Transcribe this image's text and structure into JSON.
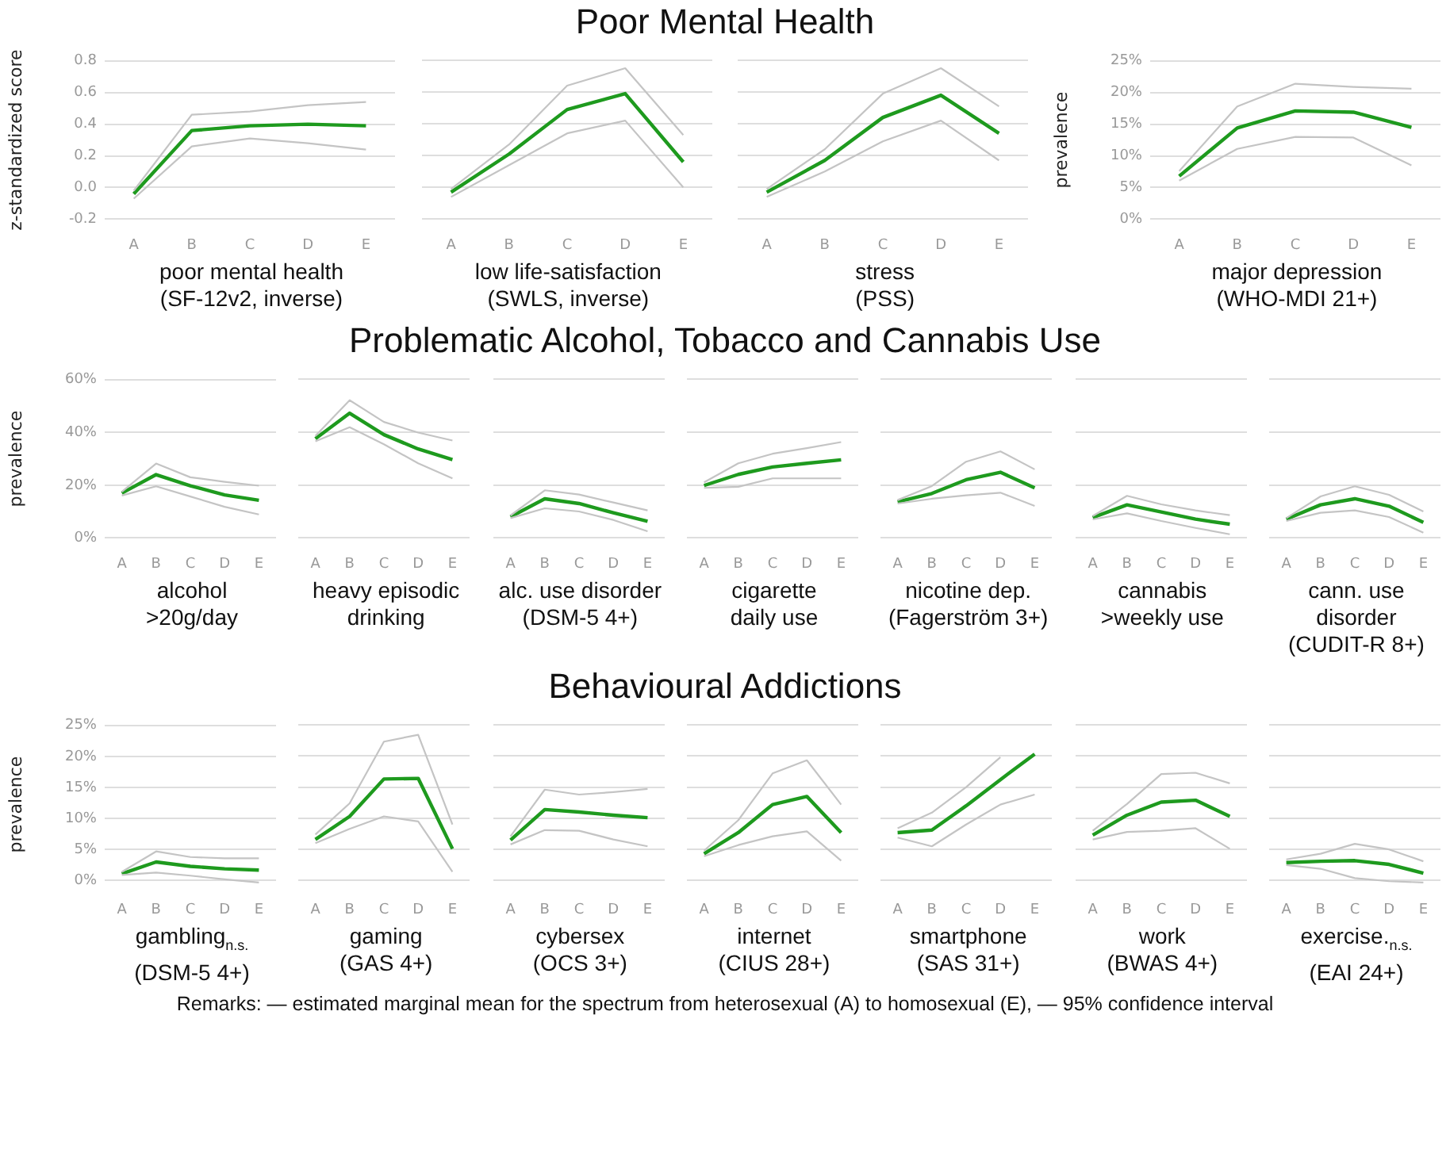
{
  "chart_data": [
    {
      "type": "other",
      "title": "Poor Mental Health"
    },
    {
      "type": "line",
      "xlabel": "poor mental health\n(SF-12v2, inverse)",
      "ylabel": "z-standardized score",
      "categories": [
        "A",
        "B",
        "C",
        "D",
        "E"
      ],
      "grid": "y",
      "marker": "none",
      "ylim": [
        -0.2,
        0.8
      ],
      "yticks": [
        -0.2,
        {
          "value": 0,
          "label": "0.0"
        },
        0.2,
        0.4,
        0.6,
        0.8
      ],
      "series": [
        {
          "color": "#c4c4c4",
          "values": [
            -0.07,
            0.26,
            0.31,
            0.28,
            0.24
          ]
        },
        {
          "color": "#c4c4c4",
          "values": [
            -0.02,
            0.46,
            0.48,
            0.52,
            0.54
          ]
        },
        {
          "color": "#1e9a1e",
          "values": [
            -0.04,
            0.36,
            0.39,
            0.4,
            0.39
          ]
        }
      ]
    },
    {
      "type": "line",
      "xlabel": "low life-satisfaction\n(SWLS, inverse)",
      "categories": [
        "A",
        "B",
        "C",
        "D",
        "E"
      ],
      "grid": "y",
      "marker": "none",
      "tick_labels": "x",
      "ylim": [
        -0.2,
        0.8
      ],
      "yticks": [
        {
          "value": -0.2,
          "label": null
        },
        {
          "value": 0,
          "label": null
        },
        {
          "value": 0.2,
          "label": null
        },
        {
          "value": 0.4,
          "label": null
        },
        {
          "value": 0.6,
          "label": null
        },
        {
          "value": 0.8,
          "label": null
        }
      ],
      "series": [
        {
          "color": "#c4c4c4",
          "values": [
            -0.06,
            0.14,
            0.34,
            0.42,
            0.0
          ]
        },
        {
          "color": "#c4c4c4",
          "values": [
            -0.01,
            0.27,
            0.64,
            0.75,
            0.33
          ]
        },
        {
          "color": "#1e9a1e",
          "values": [
            -0.03,
            0.21,
            0.49,
            0.59,
            0.16
          ]
        }
      ]
    },
    {
      "type": "line",
      "xlabel": "stress\n(PSS)",
      "categories": [
        "A",
        "B",
        "C",
        "D",
        "E"
      ],
      "grid": "y",
      "marker": "none",
      "tick_labels": "x",
      "ylim": [
        -0.2,
        0.8
      ],
      "yticks": [
        {
          "value": -0.2,
          "label": null
        },
        {
          "value": 0,
          "label": null
        },
        {
          "value": 0.2,
          "label": null
        },
        {
          "value": 0.4,
          "label": null
        },
        {
          "value": 0.6,
          "label": null
        },
        {
          "value": 0.8,
          "label": null
        }
      ],
      "series": [
        {
          "color": "#c4c4c4",
          "values": [
            -0.06,
            0.1,
            0.29,
            0.42,
            0.17
          ]
        },
        {
          "color": "#c4c4c4",
          "values": [
            -0.01,
            0.24,
            0.59,
            0.75,
            0.51
          ]
        },
        {
          "color": "#1e9a1e",
          "values": [
            -0.03,
            0.17,
            0.44,
            0.58,
            0.34
          ]
        }
      ]
    },
    {
      "type": "line",
      "xlabel": "major depression\n(WHO-MDI 21+)",
      "ylabel": "prevalence",
      "categories": [
        "A",
        "B",
        "C",
        "D",
        "E"
      ],
      "grid": "y",
      "marker": "none",
      "ylim": [
        0,
        25
      ],
      "yticks": [
        {
          "value": 0,
          "label": "0%"
        },
        {
          "value": 5,
          "label": "5%"
        },
        {
          "value": 10,
          "label": "10%"
        },
        {
          "value": 15,
          "label": "15%"
        },
        {
          "value": 20,
          "label": "20%"
        },
        {
          "value": 25,
          "label": "25%"
        }
      ],
      "series": [
        {
          "color": "#c4c4c4",
          "values": [
            6.1,
            11.1,
            13.0,
            12.9,
            8.5
          ]
        },
        {
          "color": "#c4c4c4",
          "values": [
            7.6,
            17.8,
            21.4,
            20.9,
            20.6
          ]
        },
        {
          "color": "#1e9a1e",
          "values": [
            6.8,
            14.4,
            17.1,
            16.9,
            14.5
          ]
        }
      ]
    },
    {
      "type": "other",
      "title": "Problematic Alcohol, Tobacco and Cannabis Use"
    },
    {
      "type": "line",
      "xlabel": "alcohol\n>20g/day",
      "ylabel": "prevalence",
      "categories": [
        "A",
        "B",
        "C",
        "D",
        "E"
      ],
      "grid": "y",
      "marker": "none",
      "ylim": [
        0,
        60
      ],
      "yticks": [
        {
          "value": 0,
          "label": "0%"
        },
        {
          "value": 20,
          "label": "20%"
        },
        {
          "value": 40,
          "label": "40%"
        },
        {
          "value": 60,
          "label": "60%"
        }
      ],
      "series": [
        {
          "color": "#c4c4c4",
          "values": [
            16.1,
            19.6,
            15.7,
            11.8,
            8.9
          ]
        },
        {
          "color": "#c4c4c4",
          "values": [
            17.5,
            28.2,
            23,
            21.3,
            19.8
          ]
        },
        {
          "color": "#1e9a1e",
          "values": [
            17,
            24,
            19.8,
            16.3,
            14.3
          ]
        }
      ]
    },
    {
      "type": "line",
      "xlabel": "heavy episodic\ndrinking",
      "categories": [
        "A",
        "B",
        "C",
        "D",
        "E"
      ],
      "grid": "y",
      "marker": "none",
      "tick_labels": "x",
      "ylim": [
        0,
        60
      ],
      "yticks": [
        {
          "value": 0,
          "label": null
        },
        {
          "value": 20,
          "label": null
        },
        {
          "value": 40,
          "label": null
        },
        {
          "value": 60,
          "label": null
        }
      ],
      "series": [
        {
          "color": "#c4c4c4",
          "values": [
            36.5,
            41.8,
            35.4,
            28.2,
            22.5
          ]
        },
        {
          "color": "#c4c4c4",
          "values": [
            38.5,
            52,
            43.8,
            39.8,
            36.8
          ]
        },
        {
          "color": "#1e9a1e",
          "values": [
            37.5,
            47.1,
            39,
            33.6,
            29.6
          ]
        }
      ]
    },
    {
      "type": "line",
      "xlabel": "alc. use disorder\n(DSM-5 4+)",
      "categories": [
        "A",
        "B",
        "C",
        "D",
        "E"
      ],
      "grid": "y",
      "marker": "none",
      "tick_labels": "x",
      "ylim": [
        0,
        60
      ],
      "yticks": [
        {
          "value": 0,
          "label": null
        },
        {
          "value": 20,
          "label": null
        },
        {
          "value": 40,
          "label": null
        },
        {
          "value": 60,
          "label": null
        }
      ],
      "series": [
        {
          "color": "#c4c4c4",
          "values": [
            7.5,
            11.2,
            10,
            6.8,
            2.5
          ]
        },
        {
          "color": "#c4c4c4",
          "values": [
            8.5,
            18,
            16.4,
            13.4,
            10.4
          ]
        },
        {
          "color": "#1e9a1e",
          "values": [
            8,
            14.8,
            13,
            9.5,
            6.3
          ]
        }
      ]
    },
    {
      "type": "line",
      "xlabel": "cigarette\ndaily use",
      "categories": [
        "A",
        "B",
        "C",
        "D",
        "E"
      ],
      "grid": "y",
      "marker": "none",
      "tick_labels": "x",
      "ylim": [
        0,
        60
      ],
      "yticks": [
        {
          "value": 0,
          "label": null
        },
        {
          "value": 20,
          "label": null
        },
        {
          "value": 40,
          "label": null
        },
        {
          "value": 60,
          "label": null
        }
      ],
      "series": [
        {
          "color": "#c4c4c4",
          "values": [
            18.9,
            19.3,
            22.5,
            22.5,
            22.5
          ]
        },
        {
          "color": "#c4c4c4",
          "values": [
            21,
            28.2,
            31.8,
            33.9,
            36.2
          ]
        },
        {
          "color": "#1e9a1e",
          "values": [
            19.8,
            24,
            26.8,
            28.2,
            29.5
          ]
        }
      ]
    },
    {
      "type": "line",
      "xlabel": "nicotine dep.\n(Fagerström 3+)",
      "categories": [
        "A",
        "B",
        "C",
        "D",
        "E"
      ],
      "grid": "y",
      "marker": "none",
      "tick_labels": "x",
      "ylim": [
        0,
        60
      ],
      "yticks": [
        {
          "value": 0,
          "label": null
        },
        {
          "value": 20,
          "label": null
        },
        {
          "value": 40,
          "label": null
        },
        {
          "value": 60,
          "label": null
        }
      ],
      "series": [
        {
          "color": "#c4c4c4",
          "values": [
            13,
            14.8,
            16.1,
            17.1,
            12.1
          ]
        },
        {
          "color": "#c4c4c4",
          "values": [
            14.3,
            19.6,
            28.8,
            32.7,
            25.9
          ]
        },
        {
          "color": "#1e9a1e",
          "values": [
            13.6,
            16.8,
            22,
            24.8,
            18.9
          ]
        }
      ]
    },
    {
      "type": "line",
      "xlabel": "cannabis\n>weekly use",
      "categories": [
        "A",
        "B",
        "C",
        "D",
        "E"
      ],
      "grid": "y",
      "marker": "none",
      "tick_labels": "x",
      "ylim": [
        0,
        60
      ],
      "yticks": [
        {
          "value": 0,
          "label": null
        },
        {
          "value": 20,
          "label": null
        },
        {
          "value": 40,
          "label": null
        },
        {
          "value": 60,
          "label": null
        }
      ],
      "series": [
        {
          "color": "#c4c4c4",
          "values": [
            7,
            9.3,
            6.4,
            3.8,
            1.4
          ]
        },
        {
          "color": "#c4c4c4",
          "values": [
            8.3,
            15.9,
            12.7,
            10.4,
            8.6
          ]
        },
        {
          "color": "#1e9a1e",
          "values": [
            7.7,
            12.5,
            9.8,
            7.1,
            5.2
          ]
        }
      ]
    },
    {
      "type": "line",
      "xlabel": "cann. use disorder\n(CUDIT-R 8+)",
      "categories": [
        "A",
        "B",
        "C",
        "D",
        "E"
      ],
      "grid": "y",
      "marker": "none",
      "tick_labels": "x",
      "ylim": [
        0,
        60
      ],
      "yticks": [
        {
          "value": 0,
          "label": null
        },
        {
          "value": 20,
          "label": null
        },
        {
          "value": 40,
          "label": null
        },
        {
          "value": 60,
          "label": null
        }
      ],
      "series": [
        {
          "color": "#c4c4c4",
          "values": [
            6.4,
            9.5,
            10.4,
            7.9,
            2.0
          ]
        },
        {
          "color": "#c4c4c4",
          "values": [
            7.5,
            15.7,
            19.5,
            16.3,
            10
          ]
        },
        {
          "color": "#1e9a1e",
          "values": [
            7.1,
            12.5,
            14.8,
            12,
            5.9
          ]
        }
      ]
    },
    {
      "type": "other",
      "title": "Behavioural Addictions"
    },
    {
      "type": "line",
      "xlabel": "gambling$_{n.s.}$\n(DSM-5 4+)",
      "ylabel": "prevalence",
      "categories": [
        "A",
        "B",
        "C",
        "D",
        "E"
      ],
      "grid": "y",
      "marker": "none",
      "ylim": [
        -0.5,
        25
      ],
      "yticks": [
        {
          "value": 0,
          "label": "0%"
        },
        {
          "value": 5,
          "label": "5%"
        },
        {
          "value": 10,
          "label": "10%"
        },
        {
          "value": 15,
          "label": "15%"
        },
        {
          "value": 20,
          "label": "20%"
        },
        {
          "value": 25,
          "label": "25%"
        }
      ],
      "series": [
        {
          "color": "#c4c4c4",
          "values": [
            0.9,
            1.3,
            0.8,
            0.2,
            -0.3
          ]
        },
        {
          "color": "#c4c4c4",
          "values": [
            1.4,
            4.7,
            3.8,
            3.6,
            3.6
          ]
        },
        {
          "color": "#1e9a1e",
          "values": [
            1.1,
            3.0,
            2.3,
            1.9,
            1.7
          ]
        }
      ]
    },
    {
      "type": "line",
      "xlabel": "gaming\n(GAS 4+)",
      "categories": [
        "A",
        "B",
        "C",
        "D",
        "E"
      ],
      "grid": "y",
      "marker": "none",
      "tick_labels": "x",
      "ylim": [
        -0.5,
        25
      ],
      "yticks": [
        {
          "value": 0,
          "label": null
        },
        {
          "value": 5,
          "label": null
        },
        {
          "value": 10,
          "label": null
        },
        {
          "value": 15,
          "label": null
        },
        {
          "value": 20,
          "label": null
        },
        {
          "value": 25,
          "label": null
        }
      ],
      "series": [
        {
          "color": "#c4c4c4",
          "values": [
            6.0,
            8.3,
            10.3,
            9.5,
            1.4
          ]
        },
        {
          "color": "#c4c4c4",
          "values": [
            7.4,
            12.4,
            22.3,
            23.4,
            9.0
          ]
        },
        {
          "color": "#1e9a1e",
          "values": [
            6.6,
            10.3,
            16.3,
            16.4,
            5.1
          ]
        }
      ]
    },
    {
      "type": "line",
      "xlabel": "cybersex\n(OCS 3+)",
      "categories": [
        "A",
        "B",
        "C",
        "D",
        "E"
      ],
      "grid": "y",
      "marker": "none",
      "tick_labels": "x",
      "ylim": [
        -0.5,
        25
      ],
      "yticks": [
        {
          "value": 0,
          "label": null
        },
        {
          "value": 5,
          "label": null
        },
        {
          "value": 10,
          "label": null
        },
        {
          "value": 15,
          "label": null
        },
        {
          "value": 20,
          "label": null
        },
        {
          "value": 25,
          "label": null
        }
      ],
      "series": [
        {
          "color": "#c4c4c4",
          "values": [
            5.8,
            8.1,
            8.0,
            6.6,
            5.5
          ]
        },
        {
          "color": "#c4c4c4",
          "values": [
            7.1,
            14.6,
            13.8,
            14.2,
            14.7
          ]
        },
        {
          "color": "#1e9a1e",
          "values": [
            6.5,
            11.4,
            11,
            10.5,
            10.1
          ]
        }
      ]
    },
    {
      "type": "line",
      "xlabel": "internet\n(CIUS 28+)",
      "categories": [
        "A",
        "B",
        "C",
        "D",
        "E"
      ],
      "grid": "y",
      "marker": "none",
      "tick_labels": "x",
      "ylim": [
        -0.5,
        25
      ],
      "yticks": [
        {
          "value": 0,
          "label": null
        },
        {
          "value": 5,
          "label": null
        },
        {
          "value": 10,
          "label": null
        },
        {
          "value": 15,
          "label": null
        },
        {
          "value": 20,
          "label": null
        },
        {
          "value": 25,
          "label": null
        }
      ],
      "series": [
        {
          "color": "#c4c4c4",
          "values": [
            3.9,
            5.7,
            7.1,
            7.9,
            3.2
          ]
        },
        {
          "color": "#c4c4c4",
          "values": [
            4.8,
            9.7,
            17.2,
            19.3,
            12.2
          ]
        },
        {
          "color": "#1e9a1e",
          "values": [
            4.3,
            7.7,
            12.2,
            13.5,
            7.7
          ]
        }
      ]
    },
    {
      "type": "line",
      "xlabel": "smartphone\n(SAS 31+)",
      "categories": [
        "A",
        "B",
        "C",
        "D",
        "E"
      ],
      "grid": "y",
      "marker": "none",
      "tick_labels": "x",
      "ylim": [
        -0.5,
        25
      ],
      "yticks": [
        {
          "value": 0,
          "label": null
        },
        {
          "value": 5,
          "label": null
        },
        {
          "value": 10,
          "label": null
        },
        {
          "value": 15,
          "label": null
        },
        {
          "value": 20,
          "label": null
        },
        {
          "value": 25,
          "label": null
        }
      ],
      "series": [
        {
          "color": "#c4c4c4",
          "values": [
            6.9,
            5.5,
            9.0,
            12.2,
            13.8
          ]
        },
        {
          "color": "#c4c4c4",
          "values": [
            8.4,
            10.9,
            15,
            19.8,
            null
          ]
        },
        {
          "color": "#1e9a1e",
          "values": [
            7.7,
            8.1,
            12.0,
            16.2,
            20.3
          ]
        }
      ]
    },
    {
      "type": "line",
      "xlabel": "work\n(BWAS 4+)",
      "categories": [
        "A",
        "B",
        "C",
        "D",
        "E"
      ],
      "grid": "y",
      "marker": "none",
      "tick_labels": "x",
      "ylim": [
        -0.5,
        25
      ],
      "yticks": [
        {
          "value": 0,
          "label": null
        },
        {
          "value": 5,
          "label": null
        },
        {
          "value": 10,
          "label": null
        },
        {
          "value": 15,
          "label": null
        },
        {
          "value": 20,
          "label": null
        },
        {
          "value": 25,
          "label": null
        }
      ],
      "series": [
        {
          "color": "#c4c4c4",
          "values": [
            6.6,
            7.8,
            8.0,
            8.4,
            5.1
          ]
        },
        {
          "color": "#c4c4c4",
          "values": [
            8.0,
            12.3,
            17.1,
            17.3,
            15.6
          ]
        },
        {
          "color": "#1e9a1e",
          "values": [
            7.3,
            10.5,
            12.6,
            12.9,
            10.3
          ]
        }
      ]
    },
    {
      "type": "line",
      "xlabel": "exercise.$_{n.s.}$\n(EAI 24+)",
      "categories": [
        "A",
        "B",
        "C",
        "D",
        "E"
      ],
      "grid": "y",
      "marker": "none",
      "tick_labels": "x",
      "ylim": [
        -0.5,
        25
      ],
      "yticks": [
        {
          "value": 0,
          "label": null
        },
        {
          "value": 5,
          "label": null
        },
        {
          "value": 10,
          "label": null
        },
        {
          "value": 15,
          "label": null
        },
        {
          "value": 20,
          "label": null
        },
        {
          "value": 25,
          "label": null
        }
      ],
      "series": [
        {
          "color": "#c4c4c4",
          "values": [
            2.5,
            1.9,
            0.4,
            -0.1,
            -0.3
          ]
        },
        {
          "color": "#c4c4c4",
          "values": [
            3.4,
            4.3,
            5.9,
            5.0,
            3.1
          ]
        },
        {
          "color": "#1e9a1e",
          "values": [
            2.9,
            3.1,
            3.2,
            2.6,
            1.2
          ]
        }
      ]
    },
    {
      "type": "other",
      "annotations": [
        "Remarks: — estimated marginal mean for the spectrum from heterosexual (A) to homosexual (E), — 95% confidence interval"
      ]
    }
  ]
}
